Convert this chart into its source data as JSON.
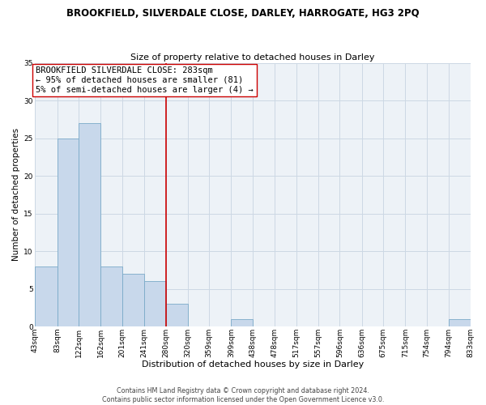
{
  "title": "BROOKFIELD, SILVERDALE CLOSE, DARLEY, HARROGATE, HG3 2PQ",
  "subtitle": "Size of property relative to detached houses in Darley",
  "xlabel": "Distribution of detached houses by size in Darley",
  "ylabel": "Number of detached properties",
  "bar_color": "#c8d8eb",
  "bar_edge_color": "#7aaac8",
  "bins": [
    43,
    83,
    122,
    162,
    201,
    241,
    280,
    320,
    359,
    399,
    438,
    478,
    517,
    557,
    596,
    636,
    675,
    715,
    754,
    794,
    833
  ],
  "bin_labels": [
    "43sqm",
    "83sqm",
    "122sqm",
    "162sqm",
    "201sqm",
    "241sqm",
    "280sqm",
    "320sqm",
    "359sqm",
    "399sqm",
    "438sqm",
    "478sqm",
    "517sqm",
    "557sqm",
    "596sqm",
    "636sqm",
    "675sqm",
    "715sqm",
    "754sqm",
    "794sqm",
    "833sqm"
  ],
  "counts": [
    8,
    25,
    27,
    8,
    7,
    6,
    3,
    0,
    0,
    1,
    0,
    0,
    0,
    0,
    0,
    0,
    0,
    0,
    0,
    1
  ],
  "vline_x": 280,
  "vline_color": "#cc0000",
  "ann_line1": "BROOKFIELD SILVERDALE CLOSE: 283sqm",
  "ann_line2": "← 95% of detached houses are smaller (81)",
  "ann_line3": "5% of semi-detached houses are larger (4) →",
  "ylim": [
    0,
    35
  ],
  "yticks": [
    0,
    5,
    10,
    15,
    20,
    25,
    30,
    35
  ],
  "grid_color": "#ccd8e4",
  "background_color": "#edf2f7",
  "footer_text": "Contains HM Land Registry data © Crown copyright and database right 2024.\nContains public sector information licensed under the Open Government Licence v3.0.",
  "title_fontsize": 8.5,
  "subtitle_fontsize": 8.0,
  "xlabel_fontsize": 8.0,
  "ylabel_fontsize": 7.5,
  "tick_fontsize": 6.5,
  "ann_fontsize": 7.5,
  "footer_fontsize": 5.8
}
